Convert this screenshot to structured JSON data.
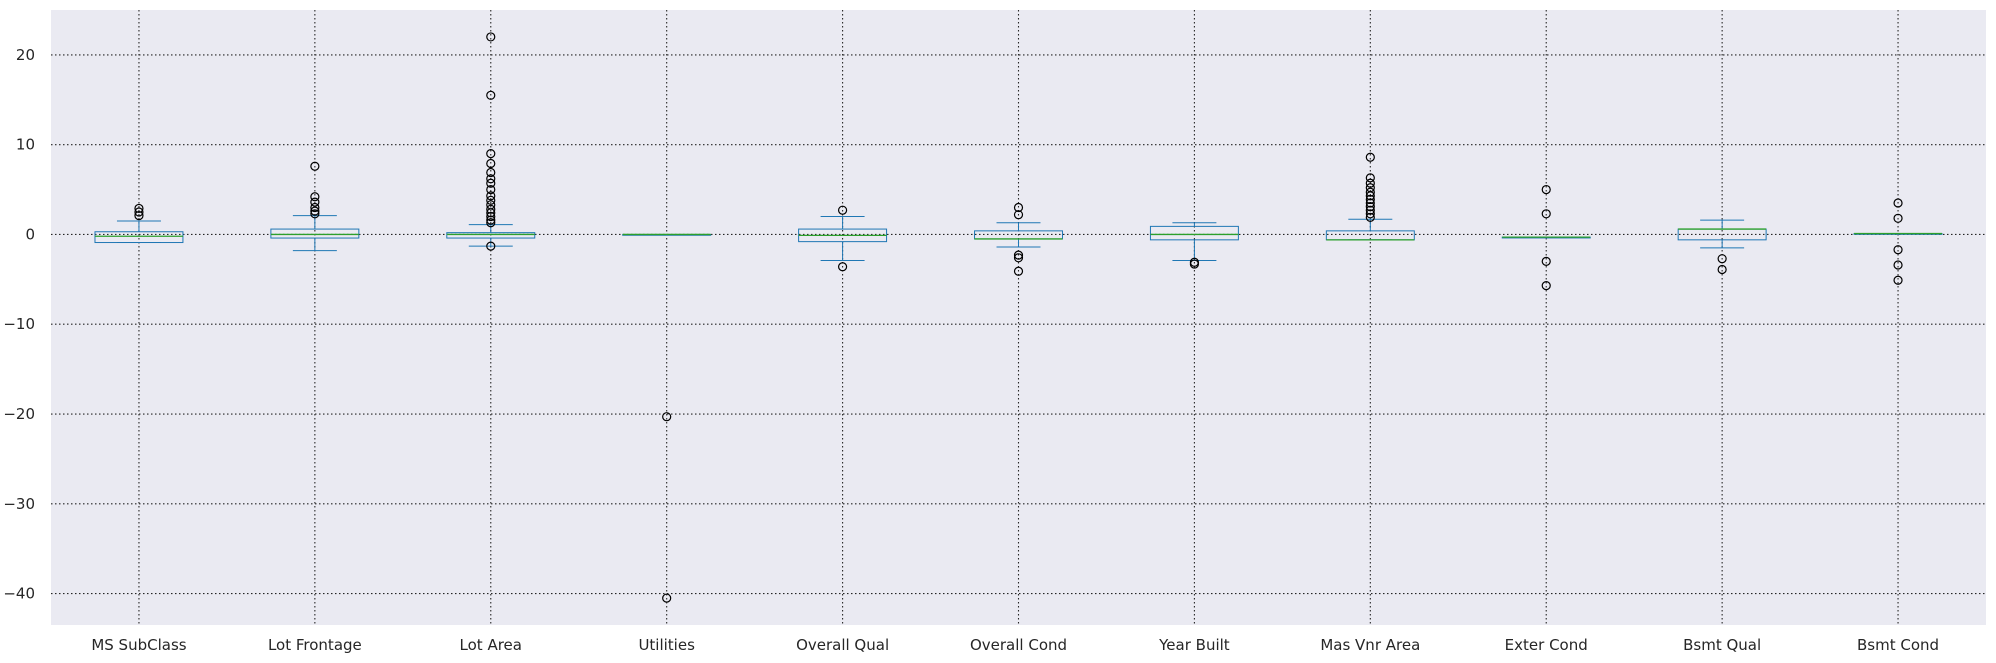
{
  "chart_data": {
    "type": "box",
    "title": "",
    "xlabel": "",
    "ylabel": "",
    "ylim": [
      -43.5,
      25
    ],
    "yticks": [
      20,
      10,
      0,
      -10,
      -20,
      -30,
      -40
    ],
    "grid": true,
    "colors": {
      "background": "#eaeaf2",
      "box": "#1f77b4",
      "median": "#2ca02c",
      "grid": "#262626",
      "flier": "#000000"
    },
    "categories": [
      "MS SubClass",
      "Lot Frontage",
      "Lot Area",
      "Utilities",
      "Overall Qual",
      "Overall Cond",
      "Year Built",
      "Mas Vnr Area",
      "Exter Cond",
      "Bsmt Qual",
      "Bsmt Cond"
    ],
    "boxes": [
      {
        "label": "MS SubClass",
        "whislo": -0.9,
        "q1": -0.9,
        "med": -0.2,
        "q3": 0.3,
        "whishi": 1.5,
        "fliers": [
          2.1,
          2.5,
          2.9
        ]
      },
      {
        "label": "Lot Frontage",
        "whislo": -1.8,
        "q1": -0.4,
        "med": 0.0,
        "q3": 0.6,
        "whishi": 2.1,
        "fliers": [
          2.3,
          2.6,
          3.0,
          3.6,
          4.2,
          7.6
        ]
      },
      {
        "label": "Lot Area",
        "whislo": -1.3,
        "q1": -0.4,
        "med": 0.0,
        "q3": 0.2,
        "whishi": 1.1,
        "fliers": [
          -1.3,
          1.3,
          1.6,
          2.0,
          2.4,
          2.8,
          3.3,
          3.8,
          4.3,
          5.0,
          5.7,
          6.2,
          6.9,
          7.9,
          9.0,
          15.5,
          22.0
        ]
      },
      {
        "label": "Utilities",
        "whislo": 0.0,
        "q1": 0.0,
        "med": 0.0,
        "q3": 0.0,
        "whishi": 0.0,
        "fliers": [
          -20.3,
          -40.5
        ]
      },
      {
        "label": "Overall Qual",
        "whislo": -2.9,
        "q1": -0.8,
        "med": -0.1,
        "q3": 0.6,
        "whishi": 2.0,
        "fliers": [
          2.7,
          -3.6
        ]
      },
      {
        "label": "Overall Cond",
        "whislo": -1.4,
        "q1": -0.5,
        "med": -0.5,
        "q3": 0.4,
        "whishi": 1.3,
        "fliers": [
          2.2,
          3.0,
          -2.3,
          -2.6,
          -4.1
        ]
      },
      {
        "label": "Year Built",
        "whislo": -2.9,
        "q1": -0.6,
        "med": 0.0,
        "q3": 0.9,
        "whishi": 1.3,
        "fliers": [
          -3.1,
          -3.3
        ]
      },
      {
        "label": "Mas Vnr Area",
        "whislo": -0.6,
        "q1": -0.6,
        "med": -0.6,
        "q3": 0.4,
        "whishi": 1.7,
        "fliers": [
          1.9,
          2.3,
          2.7,
          3.1,
          3.5,
          3.9,
          4.3,
          4.7,
          5.2,
          5.7,
          6.3,
          8.6
        ]
      },
      {
        "label": "Exter Cond",
        "whislo": -0.3,
        "q1": -0.3,
        "med": -0.3,
        "q3": -0.3,
        "whishi": -0.3,
        "fliers": [
          5.0,
          2.3,
          -3.0,
          -5.7
        ]
      },
      {
        "label": "Bsmt Qual",
        "whislo": -1.5,
        "q1": -0.6,
        "med": 0.6,
        "q3": 0.6,
        "whishi": 1.6,
        "fliers": [
          -2.7,
          -3.9
        ]
      },
      {
        "label": "Bsmt Cond",
        "whislo": 0.1,
        "q1": 0.1,
        "med": 0.1,
        "q3": 0.1,
        "whishi": 0.1,
        "fliers": [
          3.5,
          1.8,
          -1.7,
          -3.4,
          -5.1
        ]
      }
    ]
  }
}
